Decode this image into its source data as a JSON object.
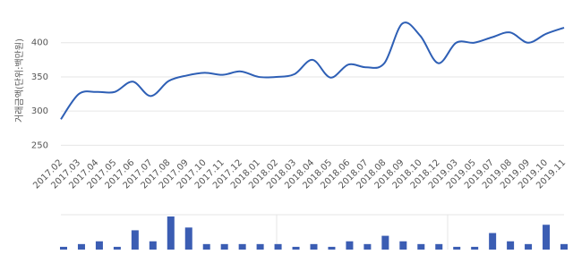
{
  "chart_data": [
    {
      "type": "line",
      "y_label": "거래금액(단위:백만원)",
      "categories": [
        "2017.02",
        "2017.03",
        "2017.04",
        "2017.05",
        "2017.06",
        "2017.07",
        "2017.08",
        "2017.09",
        "2017.10",
        "2017.11",
        "2017.12",
        "2018.01",
        "2018.02",
        "2018.03",
        "2018.04",
        "2018.05",
        "2018.06",
        "2018.07",
        "2018.08",
        "2018.09",
        "2018.10",
        "2018.12",
        "2019.03",
        "2019.05",
        "2019.07",
        "2019.08",
        "2019.09",
        "2019.10",
        "2019.11"
      ],
      "values": [
        288,
        325,
        328,
        328,
        343,
        322,
        344,
        352,
        356,
        353,
        358,
        350,
        350,
        354,
        375,
        349,
        368,
        364,
        370,
        428,
        410,
        370,
        400,
        400,
        408,
        415,
        400,
        413,
        422
      ],
      "color": "#2e5fb5",
      "ylim": [
        240,
        452
      ],
      "yticks": [
        250,
        300,
        350,
        400
      ],
      "grid": true
    },
    {
      "type": "bar",
      "values": [
        1,
        2,
        3,
        1,
        7,
        3,
        12,
        8,
        2,
        2,
        2,
        2,
        2,
        1,
        2,
        1,
        3,
        2,
        5,
        3,
        2,
        2,
        1,
        1,
        6,
        3,
        2,
        9,
        2
      ],
      "color": "#3b5db3"
    }
  ]
}
